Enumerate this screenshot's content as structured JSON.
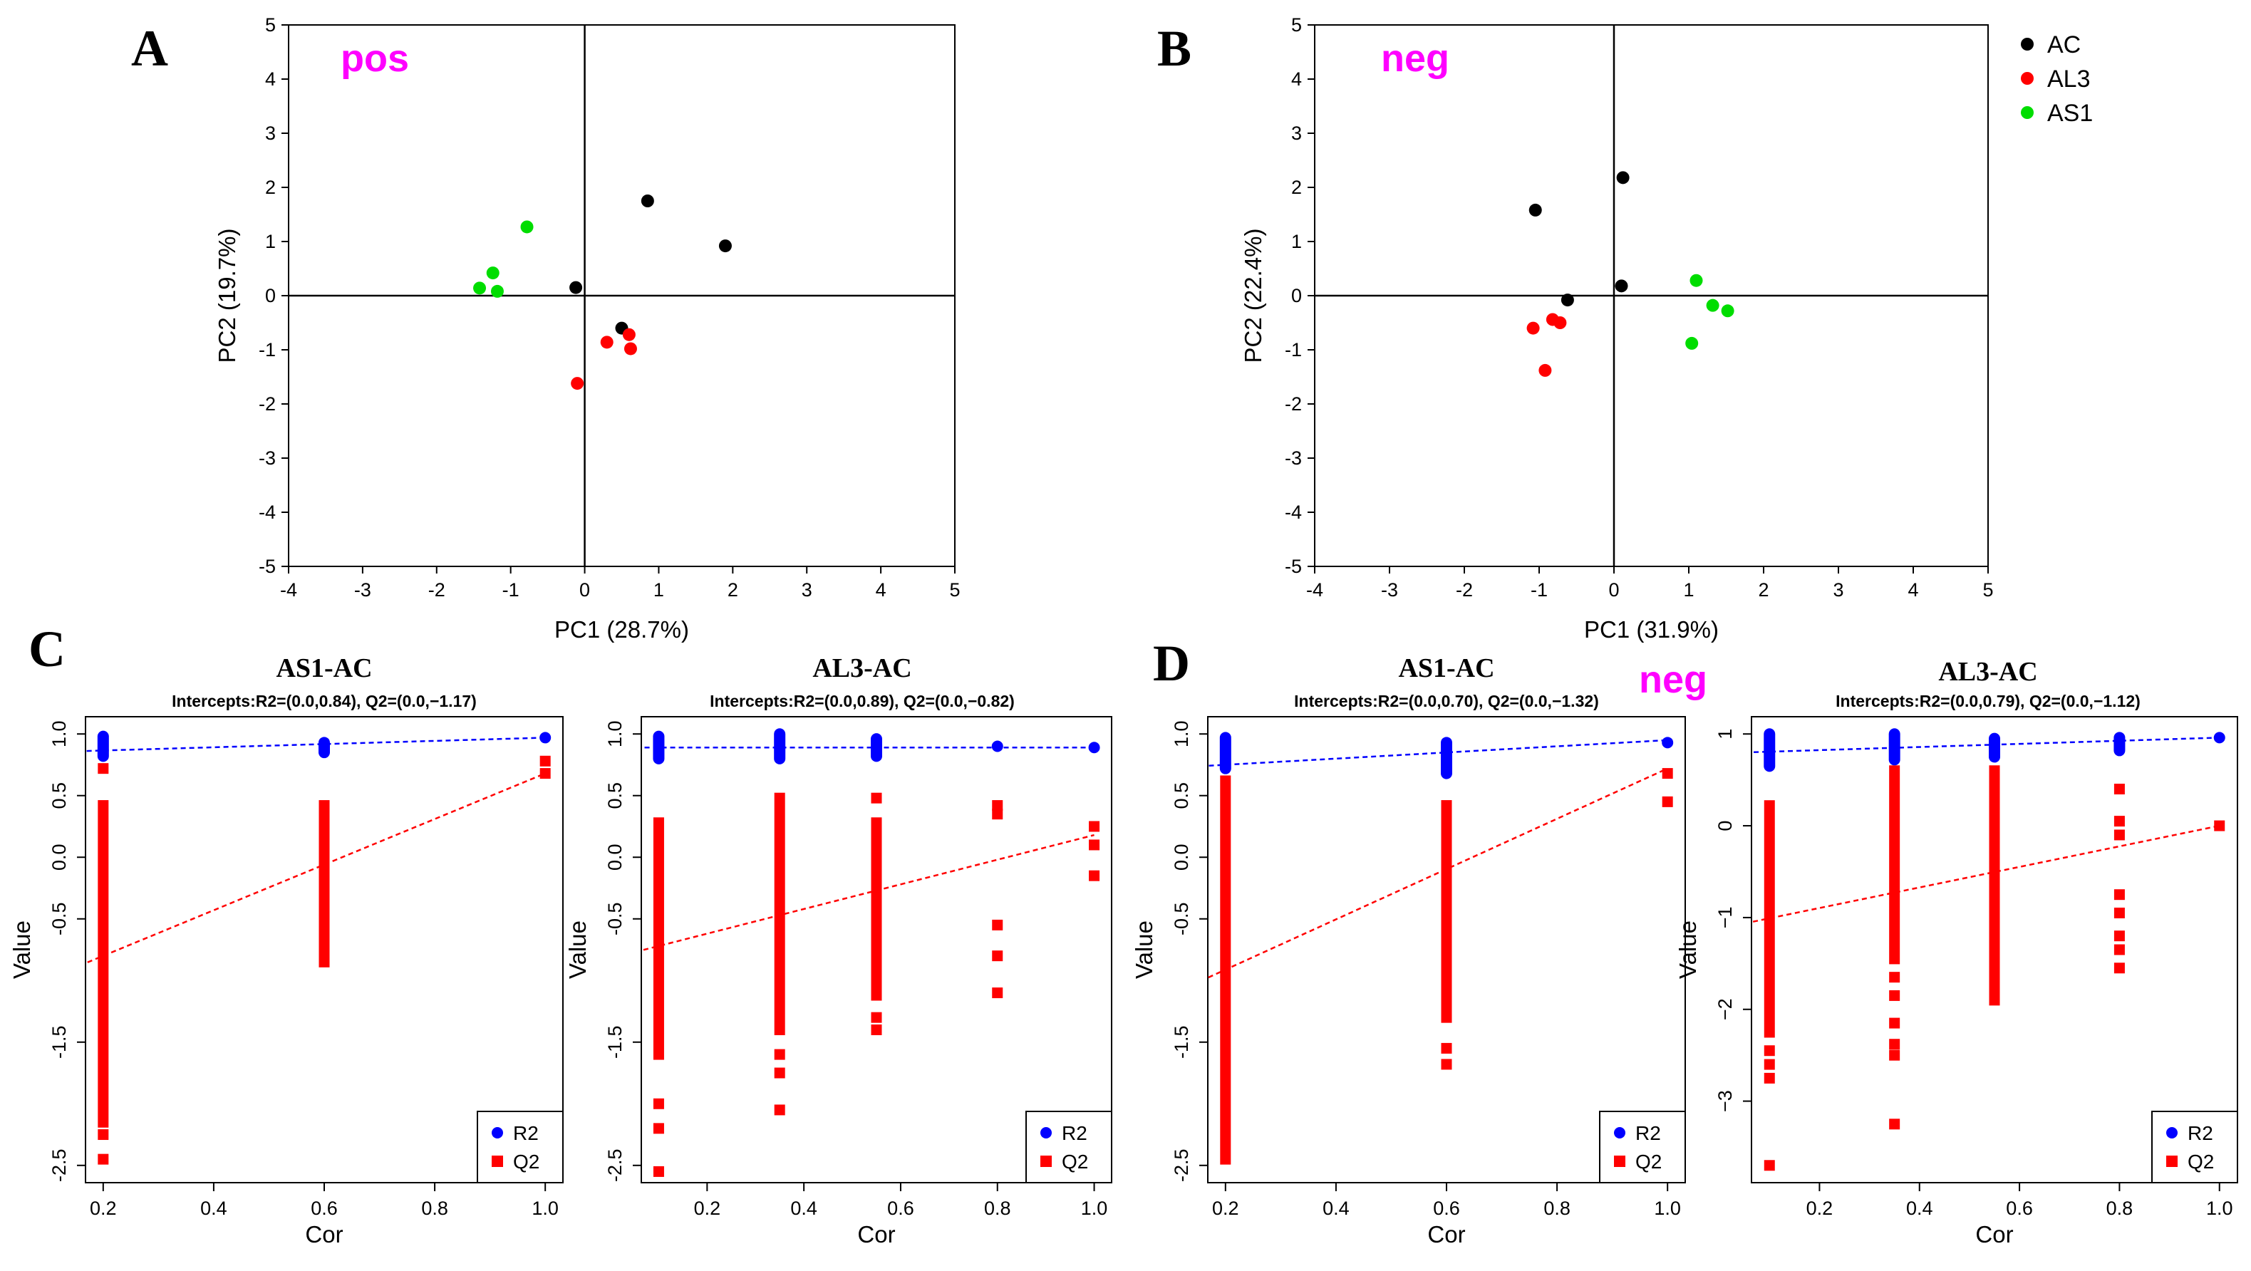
{
  "chart_data": [
    {
      "id": "A",
      "type": "scatter",
      "panel_label": "A",
      "mode_label": "pos",
      "xlabel": "PC1 (28.7%)",
      "ylabel": "PC2 (19.7%)",
      "xlim": [
        -4,
        5
      ],
      "ylim": [
        -5,
        5
      ],
      "x_ticks": [
        -4,
        -3,
        -2,
        -1,
        0,
        1,
        2,
        3,
        4,
        5
      ],
      "y_ticks": [
        -5,
        -4,
        -3,
        -2,
        -1,
        0,
        1,
        2,
        3,
        4,
        5
      ],
      "series": [
        {
          "name": "AC",
          "color": "#000000",
          "points": [
            [
              0.85,
              1.75
            ],
            [
              1.9,
              0.92
            ],
            [
              -0.12,
              0.15
            ],
            [
              0.5,
              -0.6
            ]
          ]
        },
        {
          "name": "AL3",
          "color": "#ff0000",
          "points": [
            [
              -0.1,
              -1.62
            ],
            [
              0.3,
              -0.86
            ],
            [
              0.6,
              -0.72
            ],
            [
              0.62,
              -0.98
            ]
          ]
        },
        {
          "name": "AS1",
          "color": "#00dd00",
          "points": [
            [
              -0.78,
              1.27
            ],
            [
              -1.24,
              0.42
            ],
            [
              -1.42,
              0.14
            ],
            [
              -1.18,
              0.08
            ]
          ]
        }
      ]
    },
    {
      "id": "B",
      "type": "scatter",
      "panel_label": "B",
      "mode_label": "neg",
      "xlabel": "PC1 (31.9%)",
      "ylabel": "PC2 (22.4%)",
      "xlim": [
        -4,
        5
      ],
      "ylim": [
        -5,
        5
      ],
      "x_ticks": [
        -4,
        -3,
        -2,
        -1,
        0,
        1,
        2,
        3,
        4,
        5
      ],
      "y_ticks": [
        -5,
        -4,
        -3,
        -2,
        -1,
        0,
        1,
        2,
        3,
        4,
        5
      ],
      "legend": {
        "position": "top-right",
        "entries": [
          "AC",
          "AL3",
          "AS1"
        ]
      },
      "series": [
        {
          "name": "AC",
          "color": "#000000",
          "points": [
            [
              -1.05,
              1.58
            ],
            [
              0.12,
              2.18
            ],
            [
              0.1,
              0.18
            ],
            [
              -0.62,
              -0.08
            ]
          ]
        },
        {
          "name": "AL3",
          "color": "#ff0000",
          "points": [
            [
              -1.08,
              -0.6
            ],
            [
              -0.82,
              -0.44
            ],
            [
              -0.72,
              -0.5
            ],
            [
              -0.92,
              -1.38
            ]
          ]
        },
        {
          "name": "AS1",
          "color": "#00dd00",
          "points": [
            [
              1.1,
              0.28
            ],
            [
              1.32,
              -0.18
            ],
            [
              1.52,
              -0.28
            ],
            [
              1.04,
              -0.88
            ]
          ]
        }
      ]
    },
    {
      "id": "C1",
      "type": "scatter",
      "panel_label": "C",
      "title": "AS1-AC",
      "subtitle": "Intercepts:R2=(0.0,0.84), Q2=(0.0,−1.17)",
      "xlabel": "Cor",
      "ylabel": "Value",
      "xlim": [
        0.2,
        1.0
      ],
      "ylim": [
        -2.5,
        1.0
      ],
      "x_ticks": [
        {
          "v": 0.2,
          "t": "0.2"
        },
        {
          "v": 0.4,
          "t": "0.4"
        },
        {
          "v": 0.6,
          "t": "0.6"
        },
        {
          "v": 0.8,
          "t": "0.8"
        },
        {
          "v": 1.0,
          "t": "1.0"
        }
      ],
      "y_ticks": [
        {
          "v": 1.0,
          "t": "1.0"
        },
        {
          "v": 0.5,
          "t": "0.5"
        },
        {
          "v": 0.0,
          "t": "0.0"
        },
        {
          "v": -0.5,
          "t": "-0.5"
        },
        {
          "v": -1.5,
          "t": "-1.5"
        },
        {
          "v": -2.5,
          "t": "-2.5"
        }
      ],
      "legend": {
        "position": "bottom-right",
        "entries": [
          "R2",
          "Q2"
        ]
      },
      "r2": {
        "color": "#0000ff",
        "line": [
          [
            0.0,
            0.84
          ],
          [
            1.0,
            0.97
          ]
        ],
        "columns": [
          {
            "x": 0.2,
            "min": 0.82,
            "max": 0.98
          },
          {
            "x": 0.6,
            "min": 0.85,
            "max": 0.93
          }
        ],
        "points": [
          [
            1.0,
            0.97
          ]
        ]
      },
      "q2": {
        "color": "#ff0000",
        "line": [
          [
            0.0,
            -1.17
          ],
          [
            1.0,
            0.68
          ]
        ],
        "columns": [
          {
            "x": 0.2,
            "min": -2.15,
            "max": 0.42
          },
          {
            "x": 0.6,
            "min": -0.85,
            "max": 0.42
          }
        ],
        "points": [
          [
            0.2,
            0.72
          ],
          [
            0.2,
            -2.45
          ],
          [
            0.2,
            -2.25
          ],
          [
            0.6,
            -0.8
          ],
          [
            0.6,
            -0.72
          ],
          [
            1.0,
            0.78
          ],
          [
            1.0,
            0.68
          ]
        ]
      }
    },
    {
      "id": "C2",
      "type": "scatter",
      "title": "AL3-AC",
      "subtitle": "Intercepts:R2=(0.0,0.89), Q2=(0.0,−0.82)",
      "xlabel": "Cor",
      "ylabel": "Value",
      "xlim": [
        0.1,
        1.0
      ],
      "ylim": [
        -2.5,
        1.0
      ],
      "x_ticks": [
        {
          "v": 0.2,
          "t": "0.2"
        },
        {
          "v": 0.4,
          "t": "0.4"
        },
        {
          "v": 0.6,
          "t": "0.6"
        },
        {
          "v": 0.8,
          "t": "0.8"
        },
        {
          "v": 1.0,
          "t": "1.0"
        }
      ],
      "y_ticks": [
        {
          "v": 1.0,
          "t": "1.0"
        },
        {
          "v": 0.5,
          "t": "0.5"
        },
        {
          "v": 0.0,
          "t": "0.0"
        },
        {
          "v": -0.5,
          "t": "-0.5"
        },
        {
          "v": -1.5,
          "t": "-1.5"
        },
        {
          "v": -2.5,
          "t": "-2.5"
        }
      ],
      "legend": {
        "position": "bottom-right",
        "entries": [
          "R2",
          "Q2"
        ]
      },
      "r2": {
        "color": "#0000ff",
        "line": [
          [
            0.0,
            0.89
          ],
          [
            1.0,
            0.89
          ]
        ],
        "columns": [
          {
            "x": 0.1,
            "min": 0.8,
            "max": 0.98
          },
          {
            "x": 0.35,
            "min": 0.8,
            "max": 1.0
          },
          {
            "x": 0.55,
            "min": 0.82,
            "max": 0.96
          }
        ],
        "points": [
          [
            0.8,
            0.9
          ],
          [
            1.0,
            0.89
          ]
        ]
      },
      "q2": {
        "color": "#ff0000",
        "line": [
          [
            0.0,
            -0.82
          ],
          [
            1.0,
            0.18
          ]
        ],
        "columns": [
          {
            "x": 0.1,
            "min": -1.6,
            "max": 0.28
          },
          {
            "x": 0.35,
            "min": -1.4,
            "max": 0.48
          },
          {
            "x": 0.55,
            "min": -1.12,
            "max": 0.28
          }
        ],
        "points": [
          [
            0.1,
            -2.0
          ],
          [
            0.1,
            -2.2
          ],
          [
            0.1,
            -2.55
          ],
          [
            0.35,
            -1.6
          ],
          [
            0.35,
            -1.75
          ],
          [
            0.35,
            -2.05
          ],
          [
            0.55,
            -1.3
          ],
          [
            0.55,
            -1.4
          ],
          [
            0.55,
            0.48
          ],
          [
            0.8,
            0.42
          ],
          [
            0.8,
            0.35
          ],
          [
            0.8,
            -0.55
          ],
          [
            0.8,
            -0.8
          ],
          [
            0.8,
            -1.1
          ],
          [
            1.0,
            0.25
          ],
          [
            1.0,
            0.1
          ],
          [
            1.0,
            -0.15
          ]
        ]
      }
    },
    {
      "id": "D1",
      "type": "scatter",
      "panel_label": "D",
      "title": "AS1-AC",
      "subtitle": "Intercepts:R2=(0.0,0.70), Q2=(0.0,−1.32)",
      "xlabel": "Cor",
      "ylabel": "Value",
      "xlim": [
        0.2,
        1.0
      ],
      "ylim": [
        -2.5,
        1.0
      ],
      "x_ticks": [
        {
          "v": 0.2,
          "t": "0.2"
        },
        {
          "v": 0.4,
          "t": "0.4"
        },
        {
          "v": 0.6,
          "t": "0.6"
        },
        {
          "v": 0.8,
          "t": "0.8"
        },
        {
          "v": 1.0,
          "t": "1.0"
        }
      ],
      "y_ticks": [
        {
          "v": 1.0,
          "t": "1.0"
        },
        {
          "v": 0.5,
          "t": "0.5"
        },
        {
          "v": 0.0,
          "t": "0.0"
        },
        {
          "v": -0.5,
          "t": "-0.5"
        },
        {
          "v": -1.5,
          "t": "-1.5"
        },
        {
          "v": -2.5,
          "t": "-2.5"
        }
      ],
      "legend": {
        "position": "bottom-right",
        "entries": [
          "R2",
          "Q2"
        ]
      },
      "r2": {
        "color": "#0000ff",
        "line": [
          [
            0.0,
            0.7
          ],
          [
            1.0,
            0.95
          ]
        ],
        "columns": [
          {
            "x": 0.2,
            "min": 0.72,
            "max": 0.97
          },
          {
            "x": 0.6,
            "min": 0.68,
            "max": 0.93
          }
        ],
        "points": [
          [
            1.0,
            0.93
          ]
        ]
      },
      "q2": {
        "color": "#ff0000",
        "line": [
          [
            0.0,
            -1.32
          ],
          [
            1.0,
            0.72
          ]
        ],
        "columns": [
          {
            "x": 0.2,
            "min": -2.45,
            "max": 0.62
          },
          {
            "x": 0.6,
            "min": -1.3,
            "max": 0.42
          }
        ],
        "points": [
          [
            0.6,
            -1.55
          ],
          [
            0.6,
            -1.68
          ],
          [
            1.0,
            0.68
          ],
          [
            1.0,
            0.45
          ]
        ]
      }
    },
    {
      "id": "D2",
      "type": "scatter",
      "title": "AL3-AC",
      "mode_label": "neg",
      "subtitle": "Intercepts:R2=(0.0,0.79), Q2=(0.0,−1.12)",
      "xlabel": "Cor",
      "ylabel": "Value",
      "xlim": [
        0.1,
        1.0
      ],
      "ylim": [
        -3.7,
        1.0
      ],
      "x_ticks": [
        {
          "v": 0.2,
          "t": "0.2"
        },
        {
          "v": 0.4,
          "t": "0.4"
        },
        {
          "v": 0.6,
          "t": "0.6"
        },
        {
          "v": 0.8,
          "t": "0.8"
        },
        {
          "v": 1.0,
          "t": "1.0"
        }
      ],
      "y_ticks": [
        {
          "v": 1,
          "t": "1"
        },
        {
          "v": 0,
          "t": "0"
        },
        {
          "v": -1,
          "t": "−1"
        },
        {
          "v": -2,
          "t": "−2"
        },
        {
          "v": -3,
          "t": "−3"
        }
      ],
      "legend": {
        "position": "bottom-right",
        "entries": [
          "R2",
          "Q2"
        ]
      },
      "r2": {
        "color": "#0000ff",
        "line": [
          [
            0.0,
            0.79
          ],
          [
            1.0,
            0.96
          ]
        ],
        "columns": [
          {
            "x": 0.1,
            "min": 0.65,
            "max": 1.0
          },
          {
            "x": 0.35,
            "min": 0.72,
            "max": 1.0
          },
          {
            "x": 0.55,
            "min": 0.75,
            "max": 0.95
          },
          {
            "x": 0.8,
            "min": 0.82,
            "max": 0.96
          }
        ],
        "points": [
          [
            1.0,
            0.96
          ]
        ]
      },
      "q2": {
        "color": "#ff0000",
        "line": [
          [
            0.0,
            -1.12
          ],
          [
            1.0,
            0.0
          ]
        ],
        "columns": [
          {
            "x": 0.1,
            "min": -2.25,
            "max": 0.22
          },
          {
            "x": 0.35,
            "min": -1.45,
            "max": 0.6
          },
          {
            "x": 0.55,
            "min": -1.9,
            "max": 0.6
          }
        ],
        "points": [
          [
            0.1,
            -2.45
          ],
          [
            0.1,
            -2.6
          ],
          [
            0.1,
            -2.75
          ],
          [
            0.1,
            -3.7
          ],
          [
            0.35,
            -1.65
          ],
          [
            0.35,
            -1.85
          ],
          [
            0.35,
            -2.15
          ],
          [
            0.35,
            -2.38
          ],
          [
            0.35,
            -2.5
          ],
          [
            0.35,
            -3.25
          ],
          [
            0.8,
            0.4
          ],
          [
            0.8,
            0.05
          ],
          [
            0.8,
            -0.1
          ],
          [
            0.8,
            -0.75
          ],
          [
            0.8,
            -0.95
          ],
          [
            0.8,
            -1.2
          ],
          [
            0.8,
            -1.35
          ],
          [
            0.8,
            -1.55
          ],
          [
            1.0,
            0.0
          ]
        ]
      }
    }
  ]
}
